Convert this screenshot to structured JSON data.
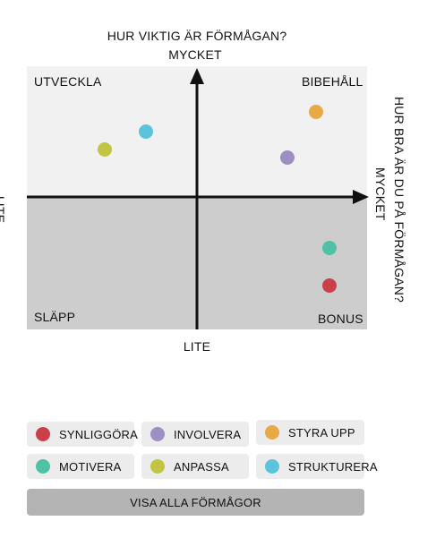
{
  "chart_data": {
    "type": "scatter",
    "title": "HUR VIKTIG ÄR FÖRMÅGAN?",
    "y_axis": {
      "top_label": "MYCKET",
      "bottom_label": "LITE"
    },
    "x_axis": {
      "title": "HUR BRA ÄR DU PÅ FÖRMÅGAN?",
      "right_label": "MYCKET",
      "left_label": "LITE"
    },
    "quadrants": {
      "top_left": "UTVECKLA",
      "top_right": "BIBEHÅLL",
      "bottom_left": "SLÄPP",
      "bottom_right": "BONUS"
    },
    "xlim": [
      -1,
      1
    ],
    "ylim": [
      -1,
      1
    ],
    "points": [
      {
        "name": "SYNLIGGÖRA",
        "x": 0.78,
        "y": -0.68,
        "color": "#c9404a"
      },
      {
        "name": "INVOLVERA",
        "x": 0.53,
        "y": 0.3,
        "color": "#9d8fc4"
      },
      {
        "name": "STYRA UPP",
        "x": 0.7,
        "y": 0.65,
        "color": "#e8aa46"
      },
      {
        "name": "MOTIVERA",
        "x": 0.78,
        "y": -0.39,
        "color": "#4fc1a6"
      },
      {
        "name": "ANPASSA",
        "x": -0.54,
        "y": 0.36,
        "color": "#c2c544"
      },
      {
        "name": "STRUKTURERA",
        "x": -0.3,
        "y": 0.5,
        "color": "#5bc4dc"
      }
    ]
  },
  "legend": {
    "items": [
      {
        "label": "SYNLIGGÖRA",
        "color": "#c9404a"
      },
      {
        "label": "INVOLVERA",
        "color": "#9d8fc4"
      },
      {
        "label": "STYRA UPP",
        "color": "#e8aa46"
      },
      {
        "label": "MOTIVERA",
        "color": "#4fc1a6"
      },
      {
        "label": "ANPASSA",
        "color": "#c2c544"
      },
      {
        "label": "STRUKTURERA",
        "color": "#5bc4dc"
      }
    ],
    "show_all_label": "VISA ALLA FÖRMÅGOR"
  }
}
